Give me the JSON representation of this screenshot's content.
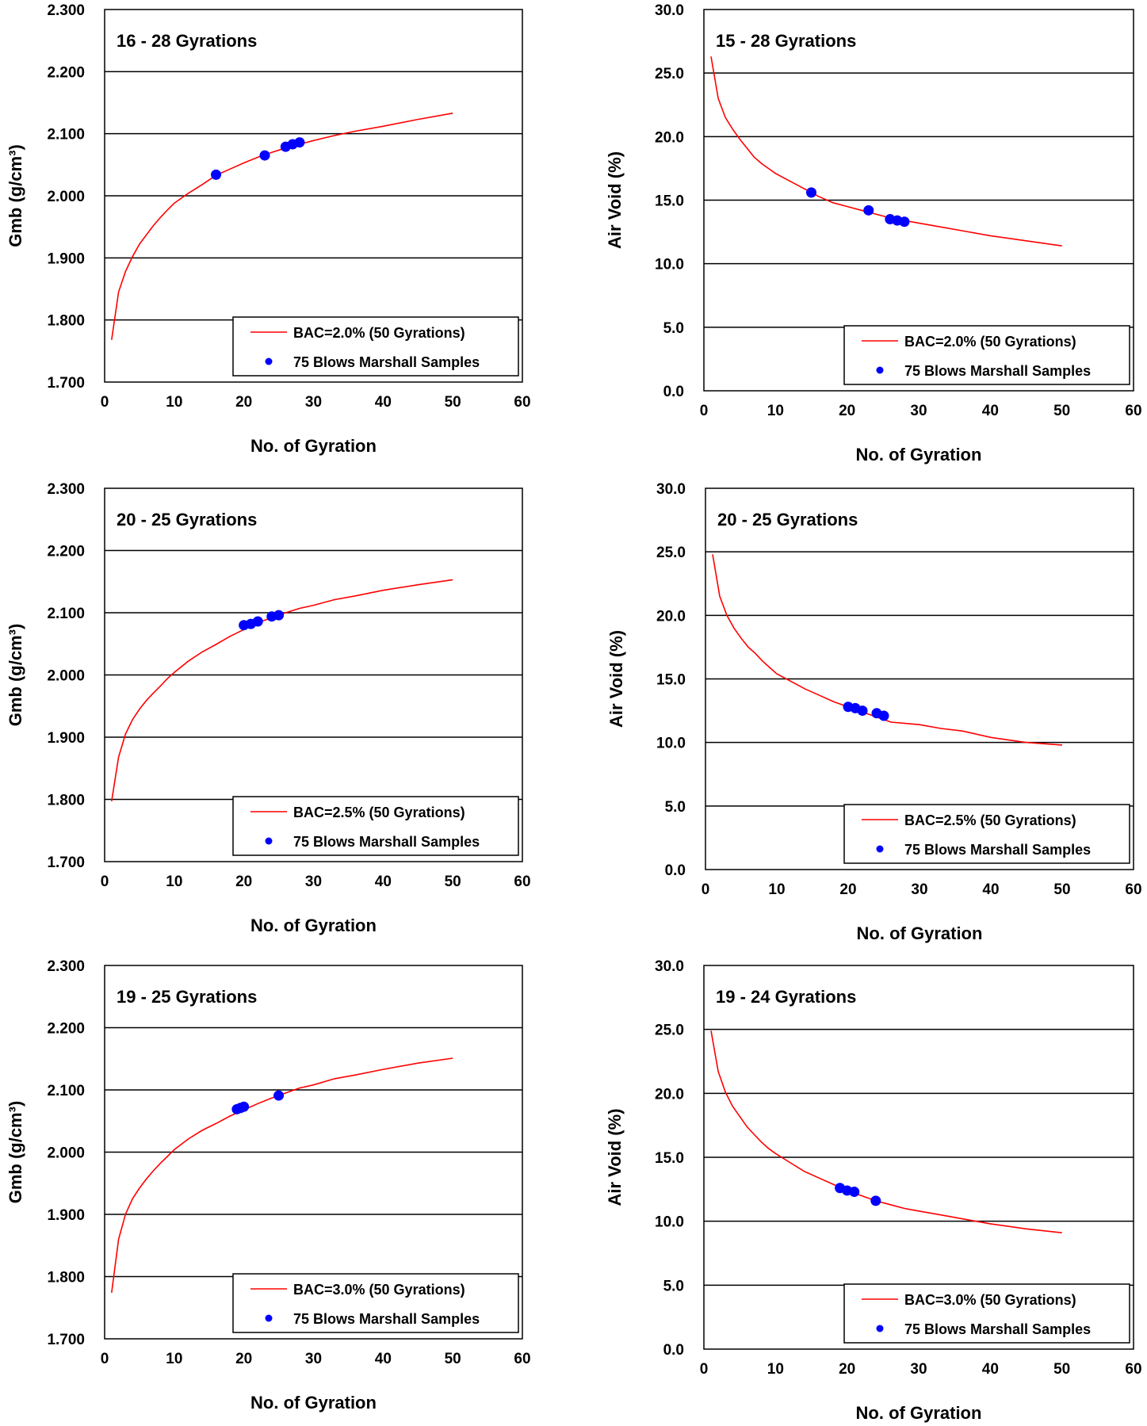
{
  "chart_data": [
    {
      "id": "gmb-2.0",
      "type": "line+scatter",
      "annotation": "16  - 28 Gyrations",
      "xlabel": "No. of Gyration",
      "ylabel": "Gmb (g/cm³)",
      "xlim": [
        0,
        60
      ],
      "ylim": [
        1.7,
        2.3
      ],
      "xticks": [
        "0",
        "10",
        "20",
        "30",
        "40",
        "50",
        "60"
      ],
      "yticks": [
        "1.700",
        "1.800",
        "1.900",
        "2.000",
        "2.100",
        "2.200",
        "2.300"
      ],
      "legend_position": "bottom-right",
      "series": [
        {
          "name": "BAC=2.0% (50 Gyrations)",
          "kind": "line",
          "color": "#ff0000",
          "x": [
            1,
            2,
            3,
            4,
            5,
            6,
            7,
            8,
            9,
            10,
            12,
            14,
            16,
            18,
            20,
            22,
            24,
            26,
            28,
            30,
            33,
            36,
            40,
            45,
            50
          ],
          "y": [
            1.768,
            1.845,
            1.878,
            1.902,
            1.922,
            1.937,
            1.952,
            1.965,
            1.977,
            1.988,
            2.004,
            2.018,
            2.033,
            2.043,
            2.053,
            2.062,
            2.07,
            2.077,
            2.083,
            2.089,
            2.097,
            2.104,
            2.112,
            2.123,
            2.133
          ]
        },
        {
          "name": "75 Blows Marshall Samples",
          "kind": "scatter",
          "color": "#0000ff",
          "x": [
            16,
            23,
            26,
            27,
            28
          ],
          "y": [
            2.034,
            2.065,
            2.079,
            2.083,
            2.086
          ]
        }
      ]
    },
    {
      "id": "av-2.0",
      "type": "line+scatter",
      "annotation": "15  - 28 Gyrations",
      "xlabel": "No. of Gyration",
      "ylabel": "Air Void (%)",
      "xlim": [
        0,
        60
      ],
      "ylim": [
        0,
        30
      ],
      "xticks": [
        "0",
        "10",
        "20",
        "30",
        "40",
        "50",
        "60"
      ],
      "yticks": [
        "0.0",
        "5.0",
        "10.0",
        "15.0",
        "20.0",
        "25.0",
        "30.0"
      ],
      "legend_position": "bottom-right",
      "series": [
        {
          "name": "BAC=2.0% (50 Gyrations)",
          "kind": "line",
          "color": "#ff0000",
          "x": [
            1,
            2,
            3,
            4,
            5,
            6,
            7,
            8,
            9,
            10,
            12,
            14,
            16,
            18,
            20,
            22,
            24,
            26,
            28,
            30,
            33,
            36,
            40,
            45,
            50
          ],
          "y": [
            26.3,
            23.0,
            21.5,
            20.6,
            19.8,
            19.1,
            18.4,
            17.9,
            17.5,
            17.1,
            16.5,
            15.9,
            15.3,
            14.8,
            14.5,
            14.2,
            13.9,
            13.6,
            13.4,
            13.2,
            12.9,
            12.6,
            12.2,
            11.8,
            11.4
          ]
        },
        {
          "name": "75 Blows Marshall Samples",
          "kind": "scatter",
          "color": "#0000ff",
          "x": [
            15,
            23,
            26,
            27,
            28
          ],
          "y": [
            15.6,
            14.2,
            13.5,
            13.4,
            13.3
          ]
        }
      ]
    },
    {
      "id": "gmb-2.5",
      "type": "line+scatter",
      "annotation": "20  - 25 Gyrations",
      "xlabel": "No. of Gyration",
      "ylabel": "Gmb (g/cm³)",
      "xlim": [
        0,
        60
      ],
      "ylim": [
        1.7,
        2.3
      ],
      "xticks": [
        "0",
        "10",
        "20",
        "30",
        "40",
        "50",
        "60"
      ],
      "yticks": [
        "1.700",
        "1.800",
        "1.900",
        "2.000",
        "2.100",
        "2.200",
        "2.300"
      ],
      "legend_position": "bottom-right",
      "series": [
        {
          "name": "BAC=2.5% (50 Gyrations)",
          "kind": "line",
          "color": "#ff0000",
          "x": [
            1,
            2,
            3,
            4,
            5,
            6,
            7,
            8,
            9,
            10,
            12,
            14,
            16,
            18,
            20,
            22,
            24,
            26,
            28,
            30,
            33,
            36,
            40,
            45,
            50
          ],
          "y": [
            1.797,
            1.868,
            1.905,
            1.928,
            1.945,
            1.959,
            1.971,
            1.982,
            1.994,
            2.004,
            2.022,
            2.037,
            2.049,
            2.062,
            2.073,
            2.084,
            2.092,
            2.1,
            2.107,
            2.112,
            2.121,
            2.127,
            2.136,
            2.145,
            2.153
          ]
        },
        {
          "name": "75 Blows Marshall Samples",
          "kind": "scatter",
          "color": "#0000ff",
          "x": [
            20,
            21,
            22,
            24,
            25
          ],
          "y": [
            2.08,
            2.082,
            2.086,
            2.094,
            2.096
          ]
        }
      ]
    },
    {
      "id": "av-2.5",
      "type": "line+scatter",
      "annotation": "20  - 25 Gyrations",
      "xlabel": "No. of Gyration",
      "ylabel": "Air Void (%)",
      "xlim": [
        0,
        60
      ],
      "ylim": [
        0,
        30
      ],
      "xticks": [
        "0",
        "10",
        "20",
        "30",
        "40",
        "50",
        "60"
      ],
      "yticks": [
        "0.0",
        "5.0",
        "10.0",
        "15.0",
        "20.0",
        "25.0",
        "30.0"
      ],
      "legend_position": "bottom-right",
      "series": [
        {
          "name": "BAC=2.5% (50 Gyrations)",
          "kind": "line",
          "color": "#ff0000",
          "x": [
            1,
            2,
            3,
            4,
            5,
            6,
            7,
            8,
            9,
            10,
            12,
            14,
            16,
            18,
            20,
            22,
            24,
            26,
            28,
            30,
            33,
            36,
            40,
            45,
            50
          ],
          "y": [
            24.8,
            21.5,
            20.0,
            19.0,
            18.2,
            17.5,
            17.0,
            16.4,
            15.9,
            15.4,
            14.8,
            14.2,
            13.7,
            13.2,
            12.8,
            12.4,
            12.0,
            11.6,
            11.5,
            11.4,
            11.1,
            10.9,
            10.4,
            10.0,
            9.8
          ]
        },
        {
          "name": "75 Blows Marshall Samples",
          "kind": "scatter",
          "color": "#0000ff",
          "x": [
            20,
            21,
            22,
            24,
            25
          ],
          "y": [
            12.8,
            12.7,
            12.5,
            12.3,
            12.1
          ]
        }
      ]
    },
    {
      "id": "gmb-3.0",
      "type": "line+scatter",
      "annotation": "19  - 25 Gyrations",
      "xlabel": "No. of Gyration",
      "ylabel": "Gmb (g/cm³)",
      "xlim": [
        0,
        60
      ],
      "ylim": [
        1.7,
        2.3
      ],
      "xticks": [
        "0",
        "10",
        "20",
        "30",
        "40",
        "50",
        "60"
      ],
      "yticks": [
        "1.700",
        "1.800",
        "1.900",
        "2.000",
        "2.100",
        "2.200",
        "2.300"
      ],
      "legend_position": "bottom-right",
      "series": [
        {
          "name": "BAC=3.0% (50 Gyrations)",
          "kind": "line",
          "color": "#ff0000",
          "x": [
            1,
            2,
            3,
            4,
            5,
            6,
            7,
            8,
            9,
            10,
            12,
            14,
            16,
            18,
            20,
            22,
            24,
            26,
            28,
            30,
            33,
            36,
            40,
            45,
            50
          ],
          "y": [
            1.774,
            1.86,
            1.9,
            1.925,
            1.942,
            1.957,
            1.97,
            1.982,
            1.993,
            2.004,
            2.021,
            2.035,
            2.046,
            2.058,
            2.068,
            2.078,
            2.087,
            2.095,
            2.103,
            2.108,
            2.118,
            2.124,
            2.133,
            2.143,
            2.151
          ]
        },
        {
          "name": "75 Blows Marshall Samples",
          "kind": "scatter",
          "color": "#0000ff",
          "x": [
            19,
            19.5,
            20,
            25
          ],
          "y": [
            2.069,
            2.071,
            2.073,
            2.091
          ]
        }
      ]
    },
    {
      "id": "av-3.0",
      "type": "line+scatter",
      "annotation": "19  - 24 Gyrations",
      "xlabel": "No. of Gyration",
      "ylabel": "Air Void (%)",
      "xlim": [
        0,
        60
      ],
      "ylim": [
        0,
        30
      ],
      "xticks": [
        "0",
        "10",
        "20",
        "30",
        "40",
        "50",
        "60"
      ],
      "yticks": [
        "0.0",
        "5.0",
        "10.0",
        "15.0",
        "20.0",
        "25.0",
        "30.0"
      ],
      "legend_position": "bottom-right",
      "series": [
        {
          "name": "BAC=3.0% (50 Gyrations)",
          "kind": "line",
          "color": "#ff0000",
          "x": [
            1,
            2,
            3,
            4,
            5,
            6,
            7,
            8,
            9,
            10,
            12,
            14,
            16,
            18,
            20,
            22,
            24,
            26,
            28,
            30,
            33,
            36,
            40,
            45,
            50
          ],
          "y": [
            24.9,
            21.7,
            20.1,
            19.0,
            18.2,
            17.4,
            16.8,
            16.2,
            15.7,
            15.3,
            14.6,
            13.9,
            13.4,
            12.9,
            12.4,
            12.0,
            11.6,
            11.3,
            11.0,
            10.8,
            10.5,
            10.2,
            9.8,
            9.4,
            9.1
          ]
        },
        {
          "name": "75 Blows Marshall Samples",
          "kind": "scatter",
          "color": "#0000ff",
          "x": [
            19,
            20,
            21,
            24
          ],
          "y": [
            12.6,
            12.4,
            12.3,
            11.6
          ]
        }
      ]
    }
  ]
}
